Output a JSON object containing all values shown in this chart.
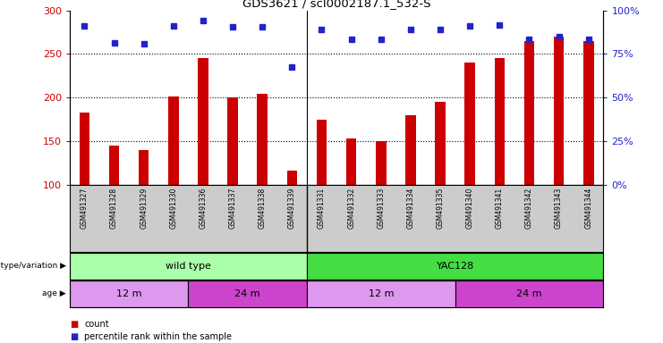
{
  "title": "GDS3621 / scl0002187.1_532-S",
  "samples": [
    "GSM491327",
    "GSM491328",
    "GSM491329",
    "GSM491330",
    "GSM491336",
    "GSM491337",
    "GSM491338",
    "GSM491339",
    "GSM491331",
    "GSM491332",
    "GSM491333",
    "GSM491334",
    "GSM491335",
    "GSM491340",
    "GSM491341",
    "GSM491342",
    "GSM491343",
    "GSM491344"
  ],
  "counts": [
    183,
    145,
    140,
    201,
    245,
    200,
    205,
    117,
    175,
    153,
    150,
    180,
    195,
    240,
    245,
    265,
    270,
    265
  ],
  "percentiles": [
    91,
    81.5,
    81,
    91,
    94,
    90.5,
    90.5,
    67.5,
    89,
    83.5,
    83.5,
    89,
    89,
    91,
    91.5,
    83.5,
    85,
    83.5
  ],
  "ylim_left": [
    100,
    300
  ],
  "ylim_right": [
    0,
    100
  ],
  "yticks_left": [
    100,
    150,
    200,
    250,
    300
  ],
  "yticks_right": [
    0,
    25,
    50,
    75,
    100
  ],
  "bar_color": "#cc0000",
  "dot_color": "#2222cc",
  "genotype_groups": [
    {
      "label": "wild type",
      "start": 0,
      "end": 8,
      "color": "#aaffaa"
    },
    {
      "label": "YAC128",
      "start": 8,
      "end": 18,
      "color": "#44dd44"
    }
  ],
  "age_groups": [
    {
      "label": "12 m",
      "start": 0,
      "end": 4,
      "color": "#dd99ee"
    },
    {
      "label": "24 m",
      "start": 4,
      "end": 8,
      "color": "#cc44cc"
    },
    {
      "label": "12 m",
      "start": 8,
      "end": 13,
      "color": "#dd99ee"
    },
    {
      "label": "24 m",
      "start": 13,
      "end": 18,
      "color": "#cc44cc"
    }
  ],
  "legend_count_color": "#cc0000",
  "legend_pct_color": "#2222cc",
  "tick_label_color_left": "#cc0000",
  "tick_label_color_right": "#2222cc",
  "bar_width": 0.35,
  "dot_size": 5
}
